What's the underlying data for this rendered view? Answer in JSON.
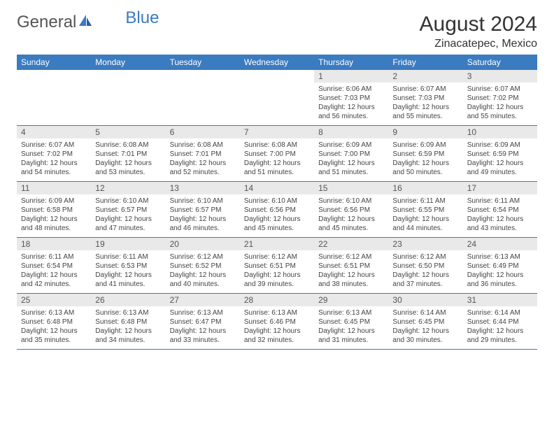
{
  "brand": {
    "part1": "General",
    "part2": "Blue"
  },
  "title": "August 2024",
  "location": "Zinacatepec, Mexico",
  "colors": {
    "header_bg": "#3b7bbf",
    "header_text": "#ffffff",
    "daynum_bg": "#e9e9e9",
    "text": "#333333",
    "logo_gray": "#555555",
    "logo_blue": "#3b7bbf",
    "row_border": "#3b7bbf"
  },
  "daysOfWeek": [
    "Sunday",
    "Monday",
    "Tuesday",
    "Wednesday",
    "Thursday",
    "Friday",
    "Saturday"
  ],
  "grid": {
    "leading_blanks": 4,
    "days": [
      {
        "n": 1,
        "sunrise": "6:06 AM",
        "sunset": "7:03 PM",
        "daylight": "12 hours and 56 minutes."
      },
      {
        "n": 2,
        "sunrise": "6:07 AM",
        "sunset": "7:03 PM",
        "daylight": "12 hours and 55 minutes."
      },
      {
        "n": 3,
        "sunrise": "6:07 AM",
        "sunset": "7:02 PM",
        "daylight": "12 hours and 55 minutes."
      },
      {
        "n": 4,
        "sunrise": "6:07 AM",
        "sunset": "7:02 PM",
        "daylight": "12 hours and 54 minutes."
      },
      {
        "n": 5,
        "sunrise": "6:08 AM",
        "sunset": "7:01 PM",
        "daylight": "12 hours and 53 minutes."
      },
      {
        "n": 6,
        "sunrise": "6:08 AM",
        "sunset": "7:01 PM",
        "daylight": "12 hours and 52 minutes."
      },
      {
        "n": 7,
        "sunrise": "6:08 AM",
        "sunset": "7:00 PM",
        "daylight": "12 hours and 51 minutes."
      },
      {
        "n": 8,
        "sunrise": "6:09 AM",
        "sunset": "7:00 PM",
        "daylight": "12 hours and 51 minutes."
      },
      {
        "n": 9,
        "sunrise": "6:09 AM",
        "sunset": "6:59 PM",
        "daylight": "12 hours and 50 minutes."
      },
      {
        "n": 10,
        "sunrise": "6:09 AM",
        "sunset": "6:59 PM",
        "daylight": "12 hours and 49 minutes."
      },
      {
        "n": 11,
        "sunrise": "6:09 AM",
        "sunset": "6:58 PM",
        "daylight": "12 hours and 48 minutes."
      },
      {
        "n": 12,
        "sunrise": "6:10 AM",
        "sunset": "6:57 PM",
        "daylight": "12 hours and 47 minutes."
      },
      {
        "n": 13,
        "sunrise": "6:10 AM",
        "sunset": "6:57 PM",
        "daylight": "12 hours and 46 minutes."
      },
      {
        "n": 14,
        "sunrise": "6:10 AM",
        "sunset": "6:56 PM",
        "daylight": "12 hours and 45 minutes."
      },
      {
        "n": 15,
        "sunrise": "6:10 AM",
        "sunset": "6:56 PM",
        "daylight": "12 hours and 45 minutes."
      },
      {
        "n": 16,
        "sunrise": "6:11 AM",
        "sunset": "6:55 PM",
        "daylight": "12 hours and 44 minutes."
      },
      {
        "n": 17,
        "sunrise": "6:11 AM",
        "sunset": "6:54 PM",
        "daylight": "12 hours and 43 minutes."
      },
      {
        "n": 18,
        "sunrise": "6:11 AM",
        "sunset": "6:54 PM",
        "daylight": "12 hours and 42 minutes."
      },
      {
        "n": 19,
        "sunrise": "6:11 AM",
        "sunset": "6:53 PM",
        "daylight": "12 hours and 41 minutes."
      },
      {
        "n": 20,
        "sunrise": "6:12 AM",
        "sunset": "6:52 PM",
        "daylight": "12 hours and 40 minutes."
      },
      {
        "n": 21,
        "sunrise": "6:12 AM",
        "sunset": "6:51 PM",
        "daylight": "12 hours and 39 minutes."
      },
      {
        "n": 22,
        "sunrise": "6:12 AM",
        "sunset": "6:51 PM",
        "daylight": "12 hours and 38 minutes."
      },
      {
        "n": 23,
        "sunrise": "6:12 AM",
        "sunset": "6:50 PM",
        "daylight": "12 hours and 37 minutes."
      },
      {
        "n": 24,
        "sunrise": "6:13 AM",
        "sunset": "6:49 PM",
        "daylight": "12 hours and 36 minutes."
      },
      {
        "n": 25,
        "sunrise": "6:13 AM",
        "sunset": "6:48 PM",
        "daylight": "12 hours and 35 minutes."
      },
      {
        "n": 26,
        "sunrise": "6:13 AM",
        "sunset": "6:48 PM",
        "daylight": "12 hours and 34 minutes."
      },
      {
        "n": 27,
        "sunrise": "6:13 AM",
        "sunset": "6:47 PM",
        "daylight": "12 hours and 33 minutes."
      },
      {
        "n": 28,
        "sunrise": "6:13 AM",
        "sunset": "6:46 PM",
        "daylight": "12 hours and 32 minutes."
      },
      {
        "n": 29,
        "sunrise": "6:13 AM",
        "sunset": "6:45 PM",
        "daylight": "12 hours and 31 minutes."
      },
      {
        "n": 30,
        "sunrise": "6:14 AM",
        "sunset": "6:45 PM",
        "daylight": "12 hours and 30 minutes."
      },
      {
        "n": 31,
        "sunrise": "6:14 AM",
        "sunset": "6:44 PM",
        "daylight": "12 hours and 29 minutes."
      }
    ]
  },
  "labels": {
    "sunrise": "Sunrise:",
    "sunset": "Sunset:",
    "daylight": "Daylight:"
  }
}
